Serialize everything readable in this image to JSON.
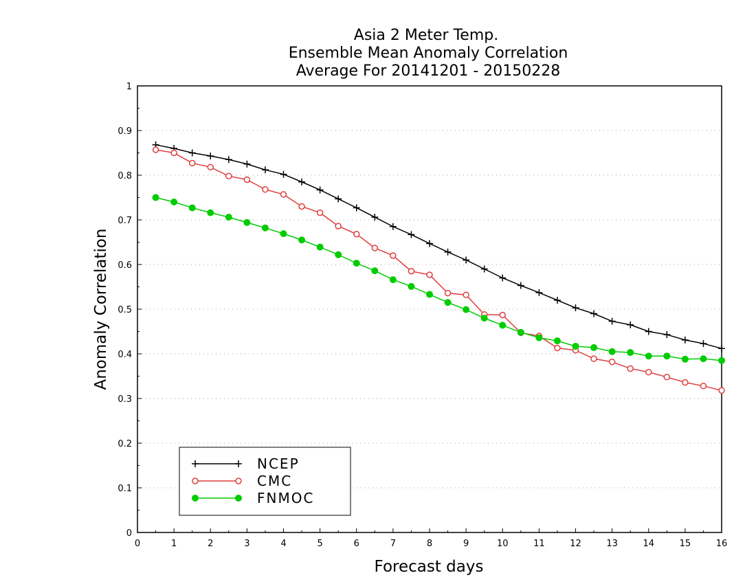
{
  "chart_data": {
    "type": "line",
    "title_lines": [
      "Asia 2 Meter Temp.",
      "Ensemble Mean Anomaly Correlation",
      "Average For 20141201 - 20150228"
    ],
    "xlabel": "Forecast days",
    "ylabel": "Anomaly Correlation",
    "xlim": [
      0,
      16
    ],
    "ylim": [
      0,
      1
    ],
    "xticks": [
      0,
      1,
      2,
      3,
      4,
      5,
      6,
      7,
      8,
      9,
      10,
      11,
      12,
      13,
      14,
      15,
      16
    ],
    "yticks": [
      0,
      0.1,
      0.2,
      0.3,
      0.4,
      0.5,
      0.6,
      0.7,
      0.8,
      0.9,
      1
    ],
    "grid": "horizontal dotted",
    "legend_position": "bottom-left",
    "x": [
      0.5,
      1,
      1.5,
      2,
      2.5,
      3,
      3.5,
      4,
      4.5,
      5,
      5.5,
      6,
      6.5,
      7,
      7.5,
      8,
      8.5,
      9,
      9.5,
      10,
      10.5,
      11,
      11.5,
      12,
      12.5,
      13,
      13.5,
      14,
      14.5,
      15,
      15.5,
      16
    ],
    "series": [
      {
        "name": "NCEP",
        "color": "#000000",
        "marker": "plus",
        "values": [
          0.868,
          0.86,
          0.85,
          0.843,
          0.835,
          0.825,
          0.812,
          0.802,
          0.785,
          0.767,
          0.747,
          0.727,
          0.706,
          0.685,
          0.667,
          0.647,
          0.628,
          0.61,
          0.59,
          0.57,
          0.553,
          0.537,
          0.52,
          0.503,
          0.49,
          0.473,
          0.465,
          0.45,
          0.443,
          0.431,
          0.423,
          0.412
        ]
      },
      {
        "name": "CMC",
        "color": "#e03c3c",
        "marker": "open-circle",
        "values": [
          0.857,
          0.85,
          0.827,
          0.818,
          0.798,
          0.79,
          0.768,
          0.757,
          0.73,
          0.716,
          0.686,
          0.668,
          0.637,
          0.62,
          0.585,
          0.577,
          0.536,
          0.532,
          0.488,
          0.487,
          0.447,
          0.44,
          0.413,
          0.408,
          0.389,
          0.382,
          0.367,
          0.359,
          0.348,
          0.336,
          0.328,
          0.318
        ]
      },
      {
        "name": "FNMOC",
        "color": "#00cc00",
        "marker": "filled-circle",
        "values": [
          0.75,
          0.74,
          0.727,
          0.716,
          0.706,
          0.694,
          0.682,
          0.669,
          0.655,
          0.639,
          0.622,
          0.603,
          0.586,
          0.566,
          0.551,
          0.533,
          0.515,
          0.499,
          0.48,
          0.464,
          0.448,
          0.436,
          0.429,
          0.417,
          0.414,
          0.405,
          0.403,
          0.395,
          0.395,
          0.388,
          0.389,
          0.385
        ]
      }
    ]
  }
}
